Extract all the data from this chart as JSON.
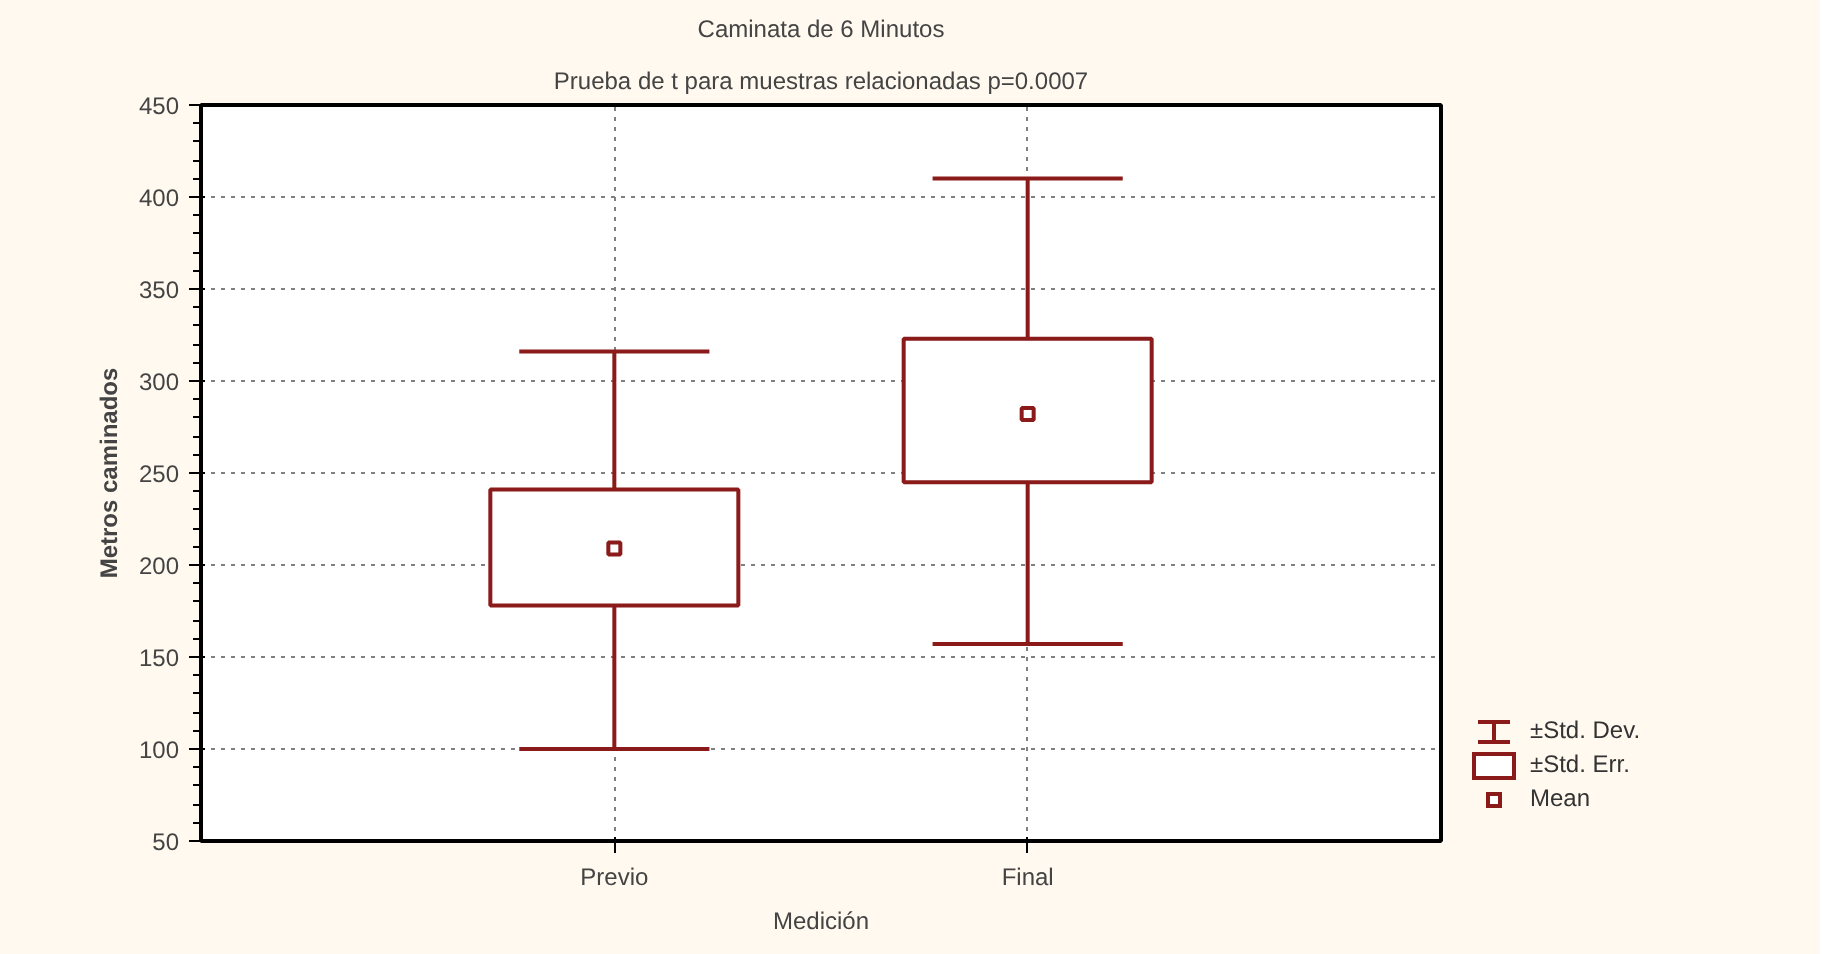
{
  "chart_data": {
    "type": "box",
    "title": "Caminata de 6 Minutos",
    "subtitle": "Prueba de t para muestras relacionadas p=0.0007",
    "xlabel": "Medición",
    "ylabel": "Metros caminados",
    "categories": [
      "Previo",
      "Final"
    ],
    "boxes": [
      {
        "low": 100,
        "q1": 178,
        "median": 209,
        "q3": 241,
        "high": 316
      },
      {
        "low": 157,
        "q1": 245,
        "median": 282,
        "q3": 323,
        "high": 410
      }
    ],
    "color": "#8b1a1a",
    "ylim": [
      50,
      450
    ],
    "yticks": [
      50,
      100,
      150,
      200,
      250,
      300,
      350,
      400,
      450
    ],
    "grid": true,
    "marker": "square",
    "annotations": [
      "±Std. Dev.",
      "±Std. Err.",
      "Mean"
    ]
  }
}
